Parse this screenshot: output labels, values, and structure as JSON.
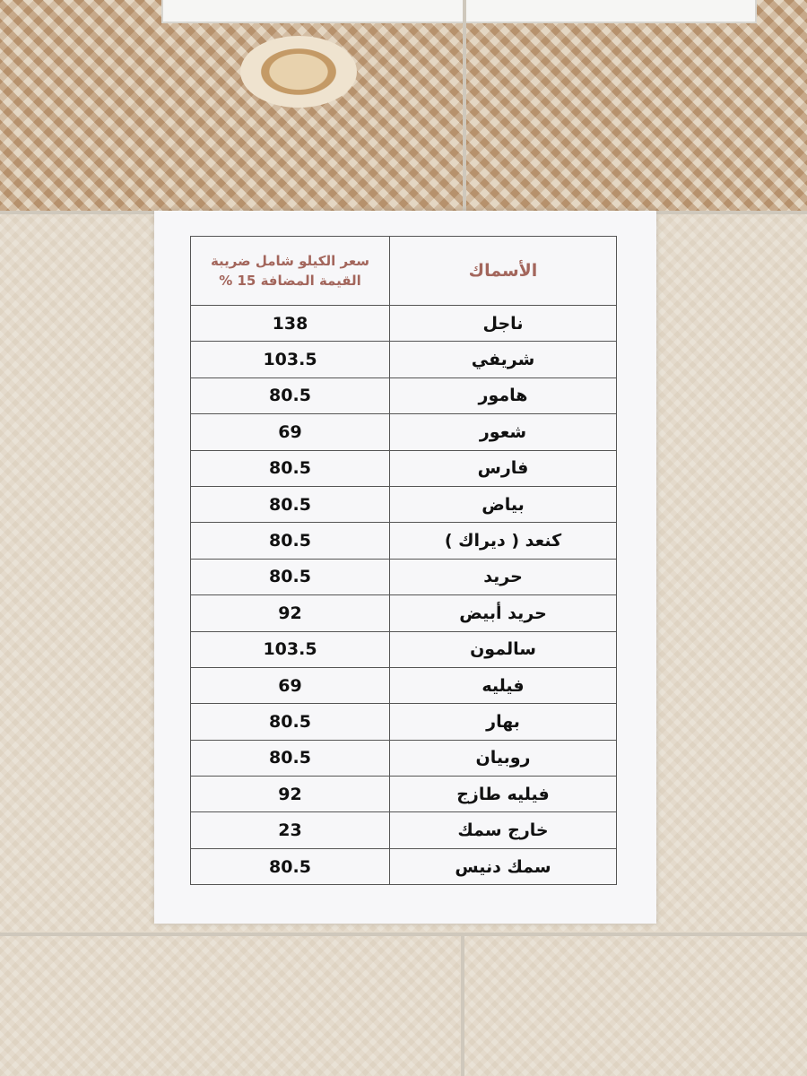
{
  "header": {
    "name_col": "الأسماك",
    "price_col_line1": "سعر الكيلو شامل ضريبة",
    "price_col_line2": "القيمة المضافة 15 %"
  },
  "rows": [
    {
      "name": "ناجل",
      "price": "138"
    },
    {
      "name": "شريفي",
      "price": "103.5"
    },
    {
      "name": "هامور",
      "price": "80.5"
    },
    {
      "name": "شعور",
      "price": "69"
    },
    {
      "name": "فارس",
      "price": "80.5"
    },
    {
      "name": "بياض",
      "price": "80.5"
    },
    {
      "name": "كنعد ( ديراك )",
      "price": "80.5"
    },
    {
      "name": "حريد",
      "price": "80.5"
    },
    {
      "name": "حريد أبيض",
      "price": "92"
    },
    {
      "name": "سالمون",
      "price": "103.5"
    },
    {
      "name": "فيليه",
      "price": "69"
    },
    {
      "name": "بهار",
      "price": "80.5"
    },
    {
      "name": "روبيان",
      "price": "80.5"
    },
    {
      "name": "فيليه طازج",
      "price": "92"
    },
    {
      "name": "خارج سمك",
      "price": "23"
    },
    {
      "name": "سمك دنيس",
      "price": "80.5"
    }
  ],
  "colors": {
    "header_text": "#a3665c",
    "paper": "#f7f7f9",
    "wall": "#e9e2d6"
  }
}
